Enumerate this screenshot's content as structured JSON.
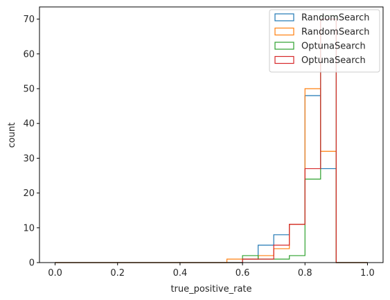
{
  "chart_data": {
    "type": "histogram",
    "xlabel": "true_positive_rate",
    "ylabel": "count",
    "xlim": [
      -0.05,
      1.05
    ],
    "ylim": [
      0,
      73.5
    ],
    "xticks": [
      0.0,
      0.2,
      0.4,
      0.6,
      0.8,
      1.0
    ],
    "xtick_labels": [
      "0.0",
      "0.2",
      "0.4",
      "0.6",
      "0.8",
      "1.0"
    ],
    "yticks": [
      0,
      10,
      20,
      30,
      40,
      50,
      60,
      70
    ],
    "ytick_labels": [
      "0",
      "10",
      "20",
      "30",
      "40",
      "50",
      "60",
      "70"
    ],
    "grid": false,
    "legend_position": "top-right",
    "bin_edges": [
      0.0,
      0.05,
      0.1,
      0.15,
      0.2,
      0.25,
      0.3,
      0.35,
      0.4,
      0.45,
      0.5,
      0.55,
      0.6,
      0.65,
      0.7,
      0.75,
      0.8,
      0.85,
      0.9,
      0.95,
      1.0
    ],
    "series": [
      {
        "name": "RandomSearch",
        "color": "#1f77b4",
        "values": [
          0,
          0,
          0,
          0,
          0,
          0,
          0,
          0,
          0,
          0,
          0,
          0,
          1,
          5,
          8,
          11,
          48,
          27,
          0,
          0
        ]
      },
      {
        "name": "RandomSearch",
        "color": "#ff7f0e",
        "values": [
          0,
          0,
          0,
          0,
          0,
          0,
          0,
          0,
          0,
          0,
          0,
          1,
          1,
          2,
          4,
          11,
          50,
          32,
          0,
          0
        ]
      },
      {
        "name": "OptunaSearch",
        "color": "#2ca02c",
        "values": [
          0,
          0,
          0,
          0,
          0,
          0,
          0,
          0,
          0,
          0,
          0,
          0,
          2,
          1,
          1,
          2,
          24,
          71,
          0,
          0
        ]
      },
      {
        "name": "OptunaSearch",
        "color": "#d62728",
        "values": [
          0,
          0,
          0,
          0,
          0,
          0,
          0,
          0,
          0,
          0,
          0,
          0,
          1,
          1,
          5,
          11,
          27,
          70,
          0,
          0
        ]
      }
    ]
  }
}
